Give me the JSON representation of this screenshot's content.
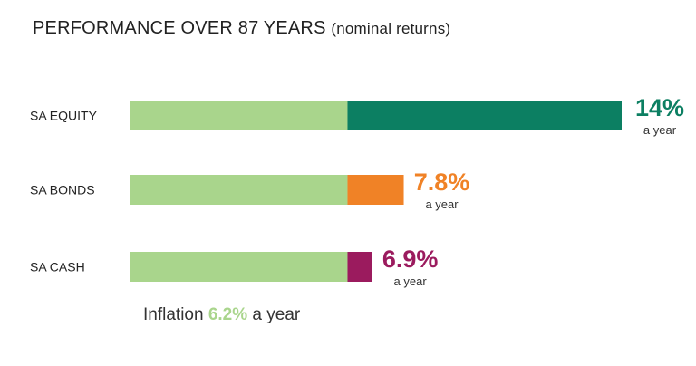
{
  "chart_data": {
    "type": "bar",
    "orientation": "horizontal",
    "title": "PERFORMANCE OVER 87 YEARS",
    "subtitle": "(nominal returns)",
    "categories": [
      "SA EQUITY",
      "SA BONDS",
      "SA CASH"
    ],
    "values": [
      14,
      7.8,
      6.9
    ],
    "value_labels": [
      "14%",
      "7.8%",
      "6.9%"
    ],
    "value_unit": "a year",
    "series_colors": [
      "#0c7f62",
      "#f08226",
      "#9b1b5e"
    ],
    "inflation": {
      "value": 6.2,
      "value_label": "6.2%",
      "color": "#a9d58c",
      "prefix": "Inflation",
      "suffix": "a year"
    },
    "xlim": [
      0,
      14
    ],
    "grid": false
  }
}
